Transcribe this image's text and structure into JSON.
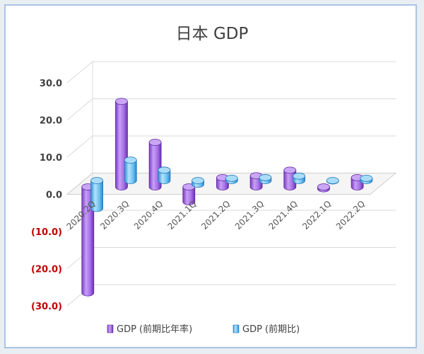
{
  "chart_data": {
    "type": "bar",
    "title": "日本 GDP",
    "categories": [
      "2020.2Q",
      "2020.3Q",
      "2020.4Q",
      "2021.1Q",
      "2021.2Q",
      "2021.3Q",
      "2021.4Q",
      "2022.1Q",
      "2022.2Q"
    ],
    "series": [
      {
        "name": "GDP (前期比年率)",
        "values": [
          -28.5,
          23.0,
          12.0,
          -4.0,
          2.5,
          3.0,
          4.5,
          -0.5,
          2.5
        ],
        "color": "#b27ef0"
      },
      {
        "name": "GDP (前期比)",
        "values": [
          -7.5,
          5.5,
          2.8,
          -1.0,
          0.6,
          0.8,
          1.2,
          -0.1,
          0.6
        ],
        "color": "#56b7ee"
      }
    ],
    "ylim": [
      -30,
      30
    ],
    "ytick_labels": [
      "30.0",
      "20.0",
      "10.0",
      "0.0",
      "(10.0)",
      "(20.0)",
      "(30.0)"
    ],
    "ytick_values": [
      30,
      20,
      10,
      0,
      -10,
      -20,
      -30
    ],
    "negative_tick_color": "#c00000",
    "positive_tick_color": "#404040",
    "legend_position": "bottom",
    "grid": true
  }
}
